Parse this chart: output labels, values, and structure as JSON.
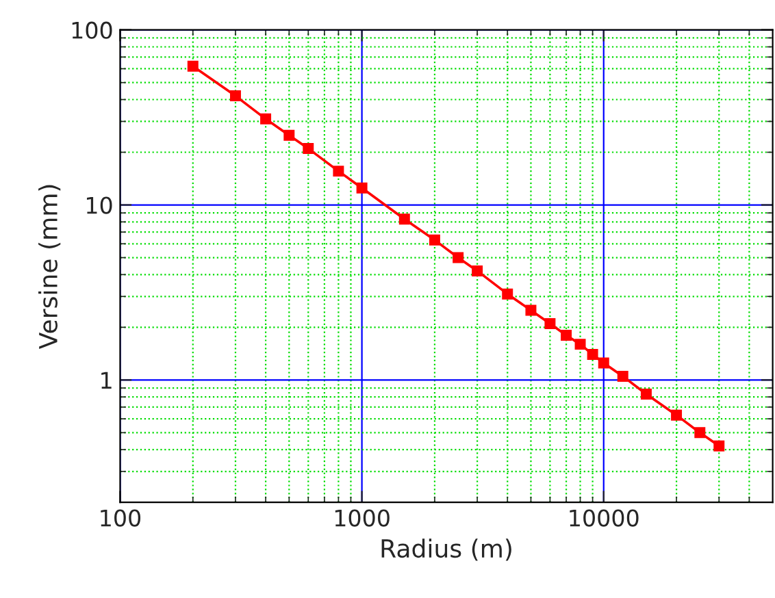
{
  "chart_data": {
    "type": "line",
    "xlabel": "Radius (m)",
    "ylabel": "Versine (mm)",
    "log": "xy",
    "x": [
      200,
      300,
      400,
      500,
      600,
      800,
      1000,
      1500,
      2000,
      2500,
      3000,
      4000,
      5000,
      6000,
      7000,
      8000,
      9000,
      10000,
      12000,
      15000,
      20000,
      25000,
      30000
    ],
    "series": [
      {
        "color": "#ff0000",
        "values": [
          62,
          42,
          31,
          25,
          21,
          15.6,
          12.5,
          8.3,
          6.3,
          5.0,
          4.2,
          3.1,
          2.5,
          2.1,
          1.8,
          1.6,
          1.4,
          1.25,
          1.05,
          0.83,
          0.63,
          0.5,
          0.42
        ]
      }
    ],
    "xlim": [
      100,
      50000
    ],
    "ylim": [
      0.2,
      100
    ],
    "xticks": [
      100,
      {
        "value": 200,
        "label": null
      },
      {
        "value": 300,
        "label": null
      },
      {
        "value": 400,
        "label": null
      },
      {
        "value": 500,
        "label": null
      },
      {
        "value": 600,
        "label": null
      },
      {
        "value": 700,
        "label": null
      },
      {
        "value": 800,
        "label": null
      },
      {
        "value": 900,
        "label": null
      },
      1000,
      {
        "value": 2000,
        "label": null
      },
      {
        "value": 3000,
        "label": null
      },
      {
        "value": 4000,
        "label": null
      },
      {
        "value": 5000,
        "label": null
      },
      {
        "value": 6000,
        "label": null
      },
      {
        "value": 7000,
        "label": null
      },
      {
        "value": 8000,
        "label": null
      },
      {
        "value": 9000,
        "label": null
      },
      10000,
      {
        "value": 20000,
        "label": null
      },
      {
        "value": 30000,
        "label": null
      },
      {
        "value": 40000,
        "label": null
      }
    ],
    "yticks": [
      {
        "value": 0.3,
        "label": null
      },
      {
        "value": 0.4,
        "label": null
      },
      {
        "value": 0.5,
        "label": null
      },
      {
        "value": 0.6,
        "label": null
      },
      {
        "value": 0.7,
        "label": null
      },
      {
        "value": 0.8,
        "label": null
      },
      {
        "value": 0.9,
        "label": null
      },
      1,
      {
        "value": 2,
        "label": null
      },
      {
        "value": 3,
        "label": null
      },
      {
        "value": 4,
        "label": null
      },
      {
        "value": 5,
        "label": null
      },
      {
        "value": 6,
        "label": null
      },
      {
        "value": 7,
        "label": null
      },
      {
        "value": 8,
        "label": null
      },
      {
        "value": 9,
        "label": null
      },
      10,
      {
        "value": 20,
        "label": null
      },
      {
        "value": 30,
        "label": null
      },
      {
        "value": 40,
        "label": null
      },
      {
        "value": 50,
        "label": null
      },
      {
        "value": 60,
        "label": null
      },
      {
        "value": 70,
        "label": null
      },
      {
        "value": 80,
        "label": null
      },
      {
        "value": 90,
        "label": null
      },
      100
    ],
    "grid": true,
    "marker": "square",
    "line_style": "solid"
  }
}
